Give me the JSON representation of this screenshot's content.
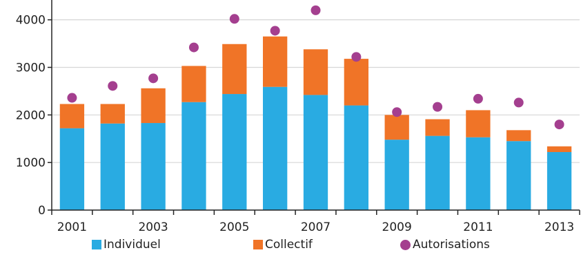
{
  "chart_data": {
    "type": "bar",
    "stacked": true,
    "categories": [
      "2001",
      "2002",
      "2003",
      "2004",
      "2005",
      "2006",
      "2007",
      "2008",
      "2009",
      "2010",
      "2011",
      "2012",
      "2013"
    ],
    "x_tick_labels": [
      "2001",
      "2003",
      "2005",
      "2007",
      "2009",
      "2011",
      "2013"
    ],
    "y_ticks": [
      "0",
      "1000",
      "2000",
      "3000",
      "4000"
    ],
    "ylim": [
      0,
      4300
    ],
    "grid": true,
    "legend_position": "bottom",
    "series": [
      {
        "name": "Individuel",
        "type": "bar",
        "color": "#29abe2",
        "values": [
          1720,
          1820,
          1830,
          2270,
          2440,
          2590,
          2420,
          2200,
          1480,
          1560,
          1530,
          1450,
          1220
        ]
      },
      {
        "name": "Collectif",
        "type": "bar",
        "color": "#f07427",
        "values": [
          510,
          410,
          730,
          760,
          1050,
          1060,
          960,
          980,
          520,
          350,
          570,
          230,
          120
        ]
      },
      {
        "name": "Autorisations",
        "type": "scatter",
        "color": "#a43f8f",
        "values": [
          2360,
          2610,
          2770,
          3420,
          4020,
          3770,
          4200,
          3220,
          2060,
          2170,
          2340,
          2260,
          1800
        ]
      }
    ]
  }
}
